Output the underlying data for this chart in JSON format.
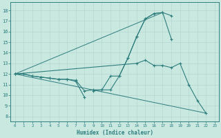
{
  "xlabel": "Humidex (Indice chaleur)",
  "background_color": "#c8e8e0",
  "line_color": "#2e7d7d",
  "grid_color": "#b0d4cc",
  "xlim": [
    -0.5,
    23.5
  ],
  "ylim": [
    7.5,
    18.8
  ],
  "xticks": [
    0,
    1,
    2,
    3,
    4,
    5,
    6,
    7,
    8,
    9,
    10,
    11,
    12,
    13,
    14,
    15,
    16,
    17,
    18,
    19,
    20,
    21,
    22,
    23
  ],
  "yticks": [
    8,
    9,
    10,
    11,
    12,
    13,
    14,
    15,
    16,
    17,
    18
  ],
  "curve1": {
    "x": [
      0,
      1,
      2,
      3,
      4,
      5,
      6,
      7,
      8,
      9,
      10,
      11,
      12,
      13,
      14,
      15,
      16,
      17,
      18
    ],
    "y": [
      12,
      12,
      11.8,
      11.7,
      11.6,
      11.5,
      11.5,
      11.4,
      10.4,
      10.5,
      10.5,
      11.8,
      11.8,
      13.5,
      15.5,
      17.2,
      17.7,
      17.8,
      17.5
    ]
  },
  "curve2a": {
    "x": [
      0,
      1,
      2,
      3,
      4,
      5,
      6,
      7,
      8
    ],
    "y": [
      12,
      12,
      11.8,
      11.7,
      11.6,
      11.5,
      11.5,
      11.3,
      9.8
    ]
  },
  "curve2b": {
    "x": [
      9,
      10,
      11,
      12,
      13,
      14,
      15,
      16,
      17,
      18
    ],
    "y": [
      10.4,
      10.5,
      10.5,
      11.8,
      13.5,
      15.5,
      17.2,
      17.7,
      17.8,
      15.3
    ]
  },
  "curve3": {
    "x": [
      0,
      14,
      15,
      16,
      17,
      18,
      19,
      20,
      21,
      22
    ],
    "y": [
      12,
      13.0,
      13.3,
      12.8,
      12.8,
      12.6,
      13.0,
      11.0,
      9.5,
      8.3
    ]
  },
  "line_upper": {
    "x1": 0,
    "y1": 12,
    "x2": 17,
    "y2": 17.8
  },
  "line_lower": {
    "x1": 0,
    "y1": 12,
    "x2": 22,
    "y2": 8.3
  }
}
